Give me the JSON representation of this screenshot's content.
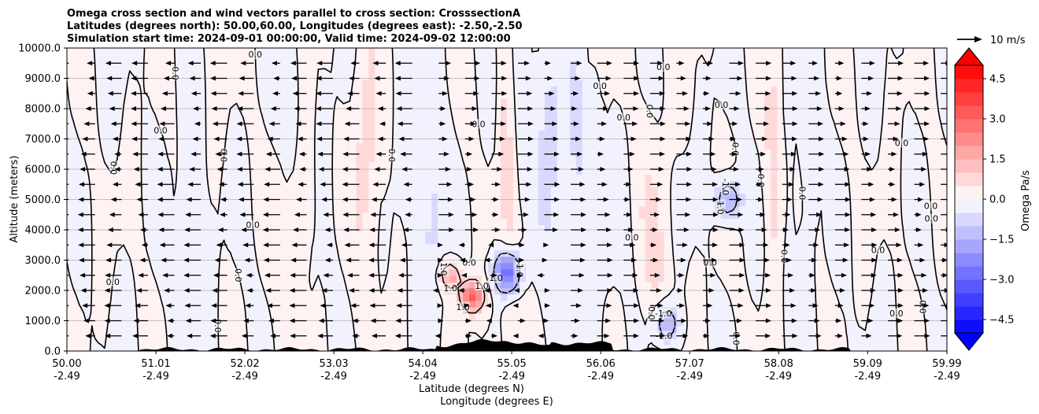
{
  "chart_data": {
    "type": "contour",
    "title_lines": [
      "Omega cross section and wind vectors parallel to cross section: CrosssectionA",
      "Latitudes (degrees north): 50.00,60.00, Longitudes (degrees east): -2.50,-2.50",
      "Simulation start time: 2024-09-01 00:00:00, Valid time: 2024-09-02 12:00:00"
    ],
    "ylabel": "Altitude (meters)",
    "xlabel": "Latitude (degrees N)",
    "xlabel2": "Longitude (degrees E)",
    "ylim": [
      0,
      10000
    ],
    "xlim": [
      50.0,
      59.99
    ],
    "y_ticks": [
      0,
      1000,
      2000,
      3000,
      4000,
      5000,
      6000,
      7000,
      8000,
      9000,
      10000
    ],
    "y_tick_labels": [
      "0.0",
      "1000.0",
      "2000.0",
      "3000.0",
      "4000.0",
      "5000.0",
      "6000.0",
      "7000.0",
      "8000.0",
      "9000.0",
      "10000.0"
    ],
    "x_ticks": [
      50.0,
      51.01,
      52.02,
      53.03,
      54.04,
      55.05,
      56.06,
      57.07,
      58.08,
      59.09,
      59.99
    ],
    "x_tick_labels": [
      "50.00",
      "51.01",
      "52.02",
      "53.03",
      "54.04",
      "55.05",
      "56.06",
      "57.07",
      "58.08",
      "59.09",
      "59.99"
    ],
    "x_tick_labels2": [
      "-2.49",
      "-2.49",
      "-2.49",
      "-2.49",
      "-2.49",
      "-2.49",
      "-2.49",
      "-2.49",
      "-2.49",
      "-2.49",
      "-2.49"
    ],
    "grid": "horizontal",
    "colorbar": {
      "label": "Omega Pa/s",
      "range": [
        -5.0,
        5.0
      ],
      "levels": 20,
      "ticks": [
        4.5,
        3.0,
        1.5,
        0.0,
        -1.5,
        -3.0,
        -4.5
      ],
      "tick_labels": [
        "4.5",
        "3.0",
        "1.5",
        "0.0",
        "−1.5",
        "−3.0",
        "−4.5"
      ],
      "colormap": "bwr",
      "extend": "both"
    },
    "quiver_key": {
      "label": "10 m/s",
      "value": 10
    },
    "contour_levels": [
      -1.0,
      0.0,
      1.0
    ],
    "contour_labels": [
      "0.0",
      "-1.0",
      "1.0"
    ],
    "features": {
      "strong_positive": [
        {
          "lat": 54.6,
          "alt": 1800,
          "omega": 3.5
        },
        {
          "lat": 54.35,
          "alt": 2500,
          "omega": 2.0
        }
      ],
      "strong_negative": [
        {
          "lat": 55.0,
          "alt": 2600,
          "omega": -3.5
        },
        {
          "lat": 57.5,
          "alt": 5000,
          "omega": -2.0
        },
        {
          "lat": 56.8,
          "alt": 900,
          "omega": -2.0
        }
      ],
      "wind_direction_south_of_54": "southward",
      "wind_direction_north_of_54": "northward"
    },
    "terrain": "hills between 50.7 and 58.9 degrees N, up to about 500 m"
  },
  "colors": {
    "max_red": "#ff0000",
    "max_blue": "#0000ff",
    "neutral": "#ffffff",
    "contour": "#000000",
    "grid": "#b0b0b0"
  }
}
